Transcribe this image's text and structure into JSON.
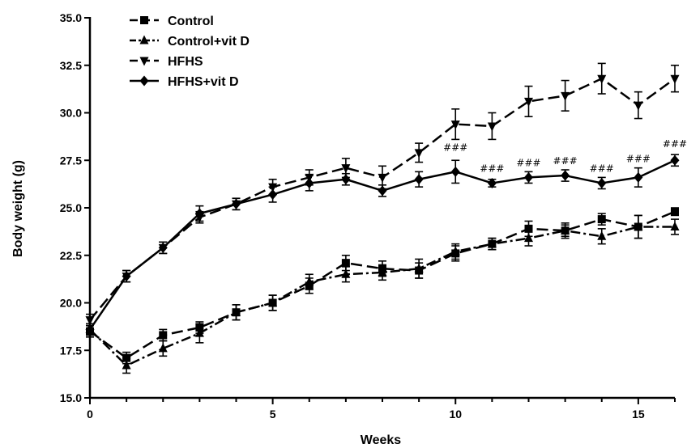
{
  "chart_data": {
    "type": "line",
    "title": "",
    "xlabel": "Weeks",
    "ylabel": "Body weight (g)",
    "xlim": [
      0,
      16
    ],
    "ylim": [
      15.0,
      35.0
    ],
    "x_ticks": [
      0,
      5,
      10,
      15
    ],
    "y_ticks": [
      15.0,
      17.5,
      20.0,
      22.5,
      25.0,
      27.5,
      30.0,
      32.5,
      35.0
    ],
    "x_tick_labels": [
      "0",
      "5",
      "10",
      "15"
    ],
    "y_tick_labels": [
      "15.0",
      "17.5",
      "20.0",
      "22.5",
      "25.0",
      "27.5",
      "30.0",
      "32.5",
      "35.0"
    ],
    "grid": false,
    "legend_position": "top-left",
    "x": [
      0,
      1,
      2,
      3,
      4,
      5,
      6,
      7,
      8,
      9,
      10,
      11,
      12,
      13,
      14,
      15,
      16
    ],
    "series": [
      {
        "name": "Control",
        "marker": "square",
        "dash": "long-dash",
        "values": [
          18.5,
          17.1,
          18.3,
          18.7,
          19.5,
          20.0,
          20.9,
          22.1,
          21.8,
          21.7,
          22.6,
          23.1,
          23.9,
          23.8,
          24.4,
          24.0,
          24.8
        ],
        "errors": [
          0.3,
          0.3,
          0.3,
          0.3,
          0.4,
          0.4,
          0.4,
          0.4,
          0.4,
          0.4,
          0.4,
          0.3,
          0.4,
          0.4,
          0.3,
          0.6,
          0.2
        ]
      },
      {
        "name": "Control+vit D",
        "marker": "triangle-up",
        "dash": "dash-dot",
        "values": [
          18.6,
          16.7,
          17.6,
          18.4,
          19.5,
          20.0,
          21.1,
          21.5,
          21.6,
          21.8,
          22.7,
          23.1,
          23.4,
          23.8,
          23.5,
          24.0,
          24.0
        ],
        "errors": [
          0.3,
          0.4,
          0.4,
          0.5,
          0.4,
          0.4,
          0.4,
          0.4,
          0.4,
          0.5,
          0.4,
          0.3,
          0.4,
          0.3,
          0.4,
          0.6,
          0.4
        ]
      },
      {
        "name": "HFHS",
        "marker": "triangle-down",
        "dash": "long-dash",
        "values": [
          19.1,
          21.4,
          22.9,
          24.5,
          25.2,
          26.1,
          26.6,
          27.1,
          26.6,
          27.9,
          29.4,
          29.3,
          30.6,
          30.9,
          31.8,
          30.4,
          31.8
        ],
        "errors": [
          0.3,
          0.3,
          0.3,
          0.3,
          0.3,
          0.4,
          0.4,
          0.5,
          0.6,
          0.5,
          0.8,
          0.7,
          0.8,
          0.8,
          0.8,
          0.7,
          0.7
        ]
      },
      {
        "name": "HFHS+vit D",
        "marker": "diamond",
        "dash": "solid",
        "values": [
          18.6,
          21.4,
          22.9,
          24.7,
          25.2,
          25.7,
          26.3,
          26.5,
          25.9,
          26.5,
          26.9,
          26.3,
          26.6,
          26.7,
          26.3,
          26.6,
          27.5
        ],
        "errors": [
          0.3,
          0.3,
          0.3,
          0.4,
          0.3,
          0.4,
          0.4,
          0.3,
          0.3,
          0.4,
          0.6,
          0.2,
          0.3,
          0.3,
          0.3,
          0.5,
          0.3
        ]
      }
    ],
    "annotations": [
      {
        "text": "###",
        "x": 10,
        "y": 28.0
      },
      {
        "text": "###",
        "x": 11,
        "y": 26.9
      },
      {
        "text": "###",
        "x": 12,
        "y": 27.2
      },
      {
        "text": "###",
        "x": 13,
        "y": 27.3
      },
      {
        "text": "###",
        "x": 14,
        "y": 26.9
      },
      {
        "text": "###",
        "x": 15,
        "y": 27.4
      },
      {
        "text": "###",
        "x": 16,
        "y": 28.2
      }
    ]
  }
}
